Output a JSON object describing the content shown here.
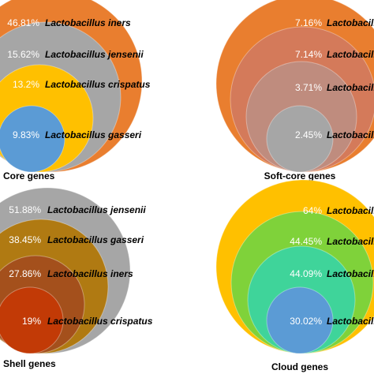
{
  "chart_data": [
    {
      "type": "nested-circle",
      "title": "Core genes",
      "categories": [
        "Lactobacillus iners",
        "Lactobacillus jensenii",
        "Lactobacillus crispatus",
        "Lactobacillus gasseri"
      ],
      "values": [
        46.81,
        15.62,
        13.2,
        9.83
      ],
      "value_labels": [
        "46.81%",
        "15.62%",
        "13.2%",
        "9.83%"
      ],
      "colors": [
        "#e97e2f",
        "#a6a6a6",
        "#ffc000",
        "#5b9bd5"
      ]
    },
    {
      "type": "nested-circle",
      "title": "Soft-core genes",
      "categories": [
        "Lactobacillus",
        "Lactobacillus",
        "Lactobacillus",
        "Lactobacillus"
      ],
      "values": [
        7.16,
        7.14,
        3.71,
        2.45
      ],
      "value_labels": [
        "7.16%",
        "7.14%",
        "3.71%",
        "2.45%"
      ],
      "colors": [
        "#e97e2f",
        "#d47a5a",
        "#bf8c7e",
        "#a6a6a6"
      ]
    },
    {
      "type": "nested-circle",
      "title": "Shell genes",
      "categories": [
        "Lactobacillus jensenii",
        "Lactobacillus gasseri",
        "Lactobacillus iners",
        "Lactobacillus crispatus"
      ],
      "values": [
        51.88,
        38.45,
        27.86,
        19
      ],
      "value_labels": [
        "51.88%",
        "38.45%",
        "27.86%",
        "19%"
      ],
      "colors": [
        "#a6a6a6",
        "#b07a12",
        "#a4501c",
        "#c23a06"
      ]
    },
    {
      "type": "nested-circle",
      "title": "Cloud genes",
      "categories": [
        "Lactobacillus",
        "Lactobacillus",
        "Lactobacillus",
        "Lactobacillus"
      ],
      "values": [
        64,
        44.45,
        44.09,
        30.02
      ],
      "value_labels": [
        "64%",
        "44.45%",
        "44.09%",
        "30.02%"
      ],
      "colors": [
        "#ffc000",
        "#7fd23a",
        "#3fd49a",
        "#5b9bd5"
      ]
    }
  ]
}
